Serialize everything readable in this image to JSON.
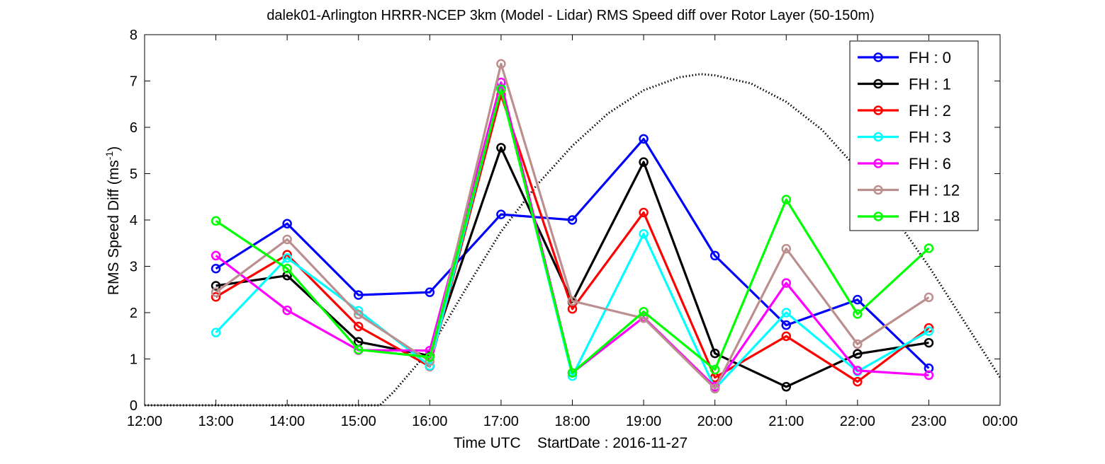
{
  "chart_data": {
    "type": "line",
    "title": "dalek01-Arlington HRRR-NCEP 3km (Model - Lidar) RMS Speed diff over Rotor Layer (50-150m)",
    "xlabel": "Time UTC    StartDate : 2016-11-27",
    "ylabel": "RMS Speed Diff (ms",
    "ylabel_sup": "-1",
    "ylabel_close": ")",
    "x_tick_labels": [
      "12:00",
      "13:00",
      "14:00",
      "15:00",
      "16:00",
      "17:00",
      "18:00",
      "19:00",
      "20:00",
      "21:00",
      "22:00",
      "23:00",
      "00:00"
    ],
    "y_tick_labels": [
      "0",
      "1",
      "2",
      "3",
      "4",
      "5",
      "6",
      "7",
      "8"
    ],
    "x_hours": [
      13,
      14,
      15,
      16,
      17,
      18,
      19,
      20,
      21,
      22,
      23
    ],
    "xlim_hours": [
      12,
      24
    ],
    "ylim": [
      0,
      8
    ],
    "grid": false,
    "legend_position": "top-right",
    "series": [
      {
        "name": "FH : 0",
        "color": "#0000ff",
        "values": [
          2.95,
          3.92,
          2.38,
          2.44,
          4.12,
          4.0,
          5.75,
          3.23,
          1.73,
          2.28,
          0.8
        ]
      },
      {
        "name": "FH : 1",
        "color": "#000000",
        "values": [
          2.58,
          2.8,
          1.37,
          1.07,
          5.56,
          2.23,
          5.25,
          1.12,
          0.4,
          1.11,
          1.35
        ]
      },
      {
        "name": "FH : 2",
        "color": "#ff0000",
        "values": [
          2.34,
          3.25,
          1.7,
          0.84,
          6.7,
          2.08,
          4.16,
          0.6,
          1.49,
          0.51,
          1.67
        ]
      },
      {
        "name": "FH : 3",
        "color": "#00ffff",
        "values": [
          1.57,
          3.18,
          2.04,
          0.85,
          6.85,
          0.63,
          3.7,
          0.36,
          2.0,
          0.73,
          1.6
        ]
      },
      {
        "name": "FH : 6",
        "color": "#ff00ff",
        "values": [
          3.23,
          2.05,
          1.19,
          1.18,
          6.97,
          0.7,
          1.9,
          0.4,
          2.64,
          0.75,
          0.65
        ]
      },
      {
        "name": "FH : 12",
        "color": "#bc8f8f",
        "values": [
          2.44,
          3.58,
          1.96,
          0.95,
          7.37,
          2.25,
          1.88,
          0.36,
          3.38,
          1.32,
          2.33
        ]
      },
      {
        "name": "FH : 18",
        "color": "#00ff00",
        "values": [
          3.98,
          2.95,
          1.2,
          1.04,
          6.82,
          0.7,
          2.02,
          0.77,
          4.44,
          1.97,
          3.39
        ]
      }
    ],
    "reference_curve": {
      "style": "dotted",
      "color": "#000000",
      "x_hours": [
        12.0,
        15.3,
        15.5,
        16.0,
        16.5,
        17.0,
        17.5,
        18.0,
        18.5,
        19.0,
        19.5,
        19.8,
        20.0,
        20.5,
        21.0,
        21.5,
        22.0,
        22.5,
        23.0,
        23.5,
        24.0
      ],
      "values": [
        0.0,
        0.0,
        0.3,
        1.2,
        2.5,
        3.75,
        4.75,
        5.6,
        6.3,
        6.8,
        7.08,
        7.15,
        7.12,
        6.95,
        6.55,
        5.95,
        5.1,
        4.1,
        3.0,
        1.8,
        0.6
      ]
    }
  }
}
